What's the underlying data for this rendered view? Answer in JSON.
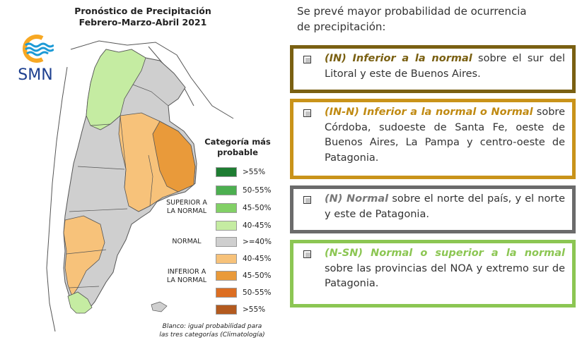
{
  "header": {
    "title_line1": "Pronóstico de Precipitación",
    "title_line2": "Febrero-Marzo-Abril 2021"
  },
  "logo": {
    "text": "SMN",
    "icon": "smn-logo-icon",
    "colors": {
      "sun": "#f7a823",
      "waves": "#1c9ad6",
      "text": "#1d3f8f"
    }
  },
  "legend": {
    "title_line1": "Categoría más",
    "title_line2": "probable",
    "groups": {
      "superior_line1": "SUPERIOR A",
      "superior_line2": "LA NORMAL",
      "normal": "NORMAL",
      "inferior_line1": "INFERIOR A",
      "inferior_line2": "LA NORMAL"
    },
    "items": [
      {
        "label": ">55%",
        "color": "#1e7d32"
      },
      {
        "label": "50-55%",
        "color": "#4caf50"
      },
      {
        "label": "45-50%",
        "color": "#82d066"
      },
      {
        "label": "40-45%",
        "color": "#c5eca2"
      },
      {
        "label": ">=40%",
        "color": "#cfcfcf"
      },
      {
        "label": "40-45%",
        "color": "#f7c27a"
      },
      {
        "label": "45-50%",
        "color": "#e99a3a"
      },
      {
        "label": "50-55%",
        "color": "#dc6e22"
      },
      {
        "label": ">55%",
        "color": "#b35a1f"
      }
    ],
    "footnote_line1": "Blanco: igual probabilidad para",
    "footnote_line2": "las tres categorías (Climatología)"
  },
  "panel": {
    "intro_line1": "Se prevé mayor probabilidad de ocurrencia",
    "intro_line2": "de precipitación:",
    "boxes": [
      {
        "border": "#7a6012",
        "highlight_color": "#7a6012",
        "highlight": "(IN) Inferior a la normal",
        "text": " sobre el sur del Litoral y este de Buenos Aires."
      },
      {
        "border": "#c9931a",
        "highlight_color": "#c08a12",
        "highlight": "(IN-N) Inferior a la normal o Normal",
        "text": " sobre Córdoba, sudoeste de Santa Fe, oeste de Buenos Aires, La Pampa y centro-oeste de Patagonia."
      },
      {
        "border": "#6b6b6b",
        "highlight_color": "#777777",
        "highlight": "(N) Normal",
        "text": " sobre el norte del país, y el norte y este de Patagonia."
      },
      {
        "border": "#8cc653",
        "highlight_color": "#8cc653",
        "highlight": "(N-SN) Normal o superior a la normal",
        "text": " sobre las provincias del NOA y extremo sur de Patagonia."
      }
    ]
  }
}
